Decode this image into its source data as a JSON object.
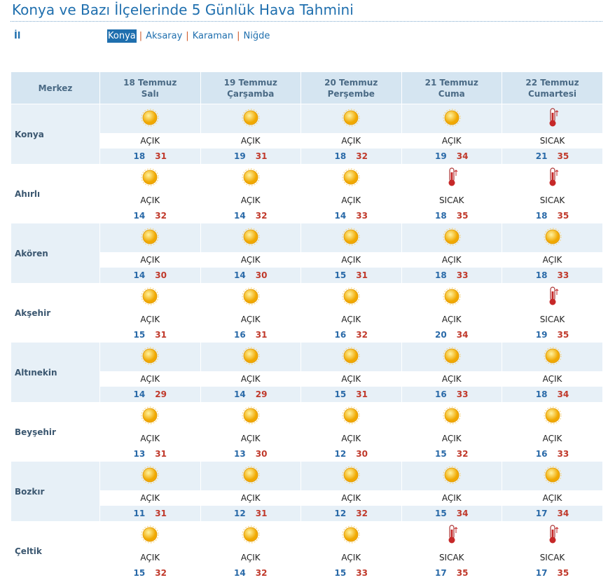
{
  "header": {
    "title": "Konya ve Bazı İlçelerinde 5 Günlük Hava Tahmini",
    "il_label": "İl"
  },
  "provinces": [
    "Konya",
    "Aksaray",
    "Karaman",
    "Niğde"
  ],
  "table": {
    "corner": "Merkez",
    "days": [
      {
        "date": "18 Temmuz",
        "weekday": "Salı"
      },
      {
        "date": "19 Temmuz",
        "weekday": "Çarşamba"
      },
      {
        "date": "20 Temmuz",
        "weekday": "Perşembe"
      },
      {
        "date": "21 Temmuz",
        "weekday": "Cuma"
      },
      {
        "date": "22 Temmuz",
        "weekday": "Cumartesi"
      }
    ],
    "rows": [
      {
        "name": "Konya",
        "cells": [
          {
            "condition": "AÇIK",
            "min": 18,
            "max": 31
          },
          {
            "condition": "AÇIK",
            "min": 19,
            "max": 31
          },
          {
            "condition": "AÇIK",
            "min": 18,
            "max": 32
          },
          {
            "condition": "AÇIK",
            "min": 19,
            "max": 34
          },
          {
            "condition": "SICAK",
            "min": 21,
            "max": 35
          }
        ]
      },
      {
        "name": "Ahırlı",
        "cells": [
          {
            "condition": "AÇIK",
            "min": 14,
            "max": 32
          },
          {
            "condition": "AÇIK",
            "min": 14,
            "max": 32
          },
          {
            "condition": "AÇIK",
            "min": 14,
            "max": 33
          },
          {
            "condition": "SICAK",
            "min": 18,
            "max": 35
          },
          {
            "condition": "SICAK",
            "min": 18,
            "max": 35
          }
        ]
      },
      {
        "name": "Akören",
        "cells": [
          {
            "condition": "AÇIK",
            "min": 14,
            "max": 30
          },
          {
            "condition": "AÇIK",
            "min": 14,
            "max": 30
          },
          {
            "condition": "AÇIK",
            "min": 15,
            "max": 31
          },
          {
            "condition": "AÇIK",
            "min": 18,
            "max": 33
          },
          {
            "condition": "AÇIK",
            "min": 18,
            "max": 33
          }
        ]
      },
      {
        "name": "Akşehir",
        "cells": [
          {
            "condition": "AÇIK",
            "min": 15,
            "max": 31
          },
          {
            "condition": "AÇIK",
            "min": 16,
            "max": 31
          },
          {
            "condition": "AÇIK",
            "min": 16,
            "max": 32
          },
          {
            "condition": "AÇIK",
            "min": 20,
            "max": 34
          },
          {
            "condition": "SICAK",
            "min": 19,
            "max": 35
          }
        ]
      },
      {
        "name": "Altınekin",
        "cells": [
          {
            "condition": "AÇIK",
            "min": 14,
            "max": 29
          },
          {
            "condition": "AÇIK",
            "min": 14,
            "max": 29
          },
          {
            "condition": "AÇIK",
            "min": 15,
            "max": 31
          },
          {
            "condition": "AÇIK",
            "min": 16,
            "max": 33
          },
          {
            "condition": "AÇIK",
            "min": 18,
            "max": 34
          }
        ]
      },
      {
        "name": "Beyşehir",
        "cells": [
          {
            "condition": "AÇIK",
            "min": 13,
            "max": 31
          },
          {
            "condition": "AÇIK",
            "min": 13,
            "max": 30
          },
          {
            "condition": "AÇIK",
            "min": 12,
            "max": 30
          },
          {
            "condition": "AÇIK",
            "min": 15,
            "max": 32
          },
          {
            "condition": "AÇIK",
            "min": 16,
            "max": 33
          }
        ]
      },
      {
        "name": "Bozkır",
        "cells": [
          {
            "condition": "AÇIK",
            "min": 11,
            "max": 31
          },
          {
            "condition": "AÇIK",
            "min": 12,
            "max": 31
          },
          {
            "condition": "AÇIK",
            "min": 12,
            "max": 32
          },
          {
            "condition": "AÇIK",
            "min": 15,
            "max": 34
          },
          {
            "condition": "AÇIK",
            "min": 17,
            "max": 34
          }
        ]
      },
      {
        "name": "Çeltik",
        "cells": [
          {
            "condition": "AÇIK",
            "min": 15,
            "max": 32
          },
          {
            "condition": "AÇIK",
            "min": 14,
            "max": 32
          },
          {
            "condition": "AÇIK",
            "min": 15,
            "max": 33
          },
          {
            "condition": "SICAK",
            "min": 17,
            "max": 35
          },
          {
            "condition": "SICAK",
            "min": 17,
            "max": 35
          }
        ]
      }
    ]
  }
}
